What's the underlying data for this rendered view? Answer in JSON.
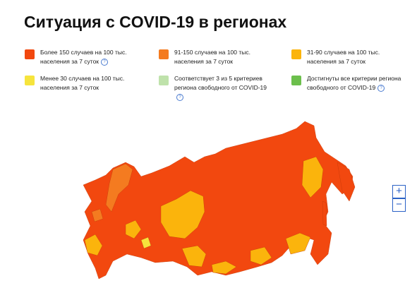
{
  "header": {
    "title": "Ситуация с COVID-19 в регионах"
  },
  "legend": [
    {
      "color": "#f2480f",
      "label": "Более 150 случаев на 100 тыс. населения за 7 суток",
      "help": true
    },
    {
      "color": "#f47b20",
      "label": "91-150 случаев на 100 тыс. населения за 7 суток",
      "help": false
    },
    {
      "color": "#fbb40c",
      "label": "31-90 случаев на 100 тыс. населения за 7 суток",
      "help": false
    },
    {
      "color": "#f6e43c",
      "label": "Менее 30 случаев на 100 тыс. населения за 7 суток",
      "help": false
    },
    {
      "color": "#bfe2ab",
      "label": "Соответствует 3 из 5 критериев региона свободного от COVID-19",
      "help": true
    },
    {
      "color": "#6cbf4c",
      "label": "Достигнуты все критерии региона свободного от COVID-19",
      "help": true
    }
  ],
  "zoom": {
    "in": "+",
    "out": "−"
  }
}
